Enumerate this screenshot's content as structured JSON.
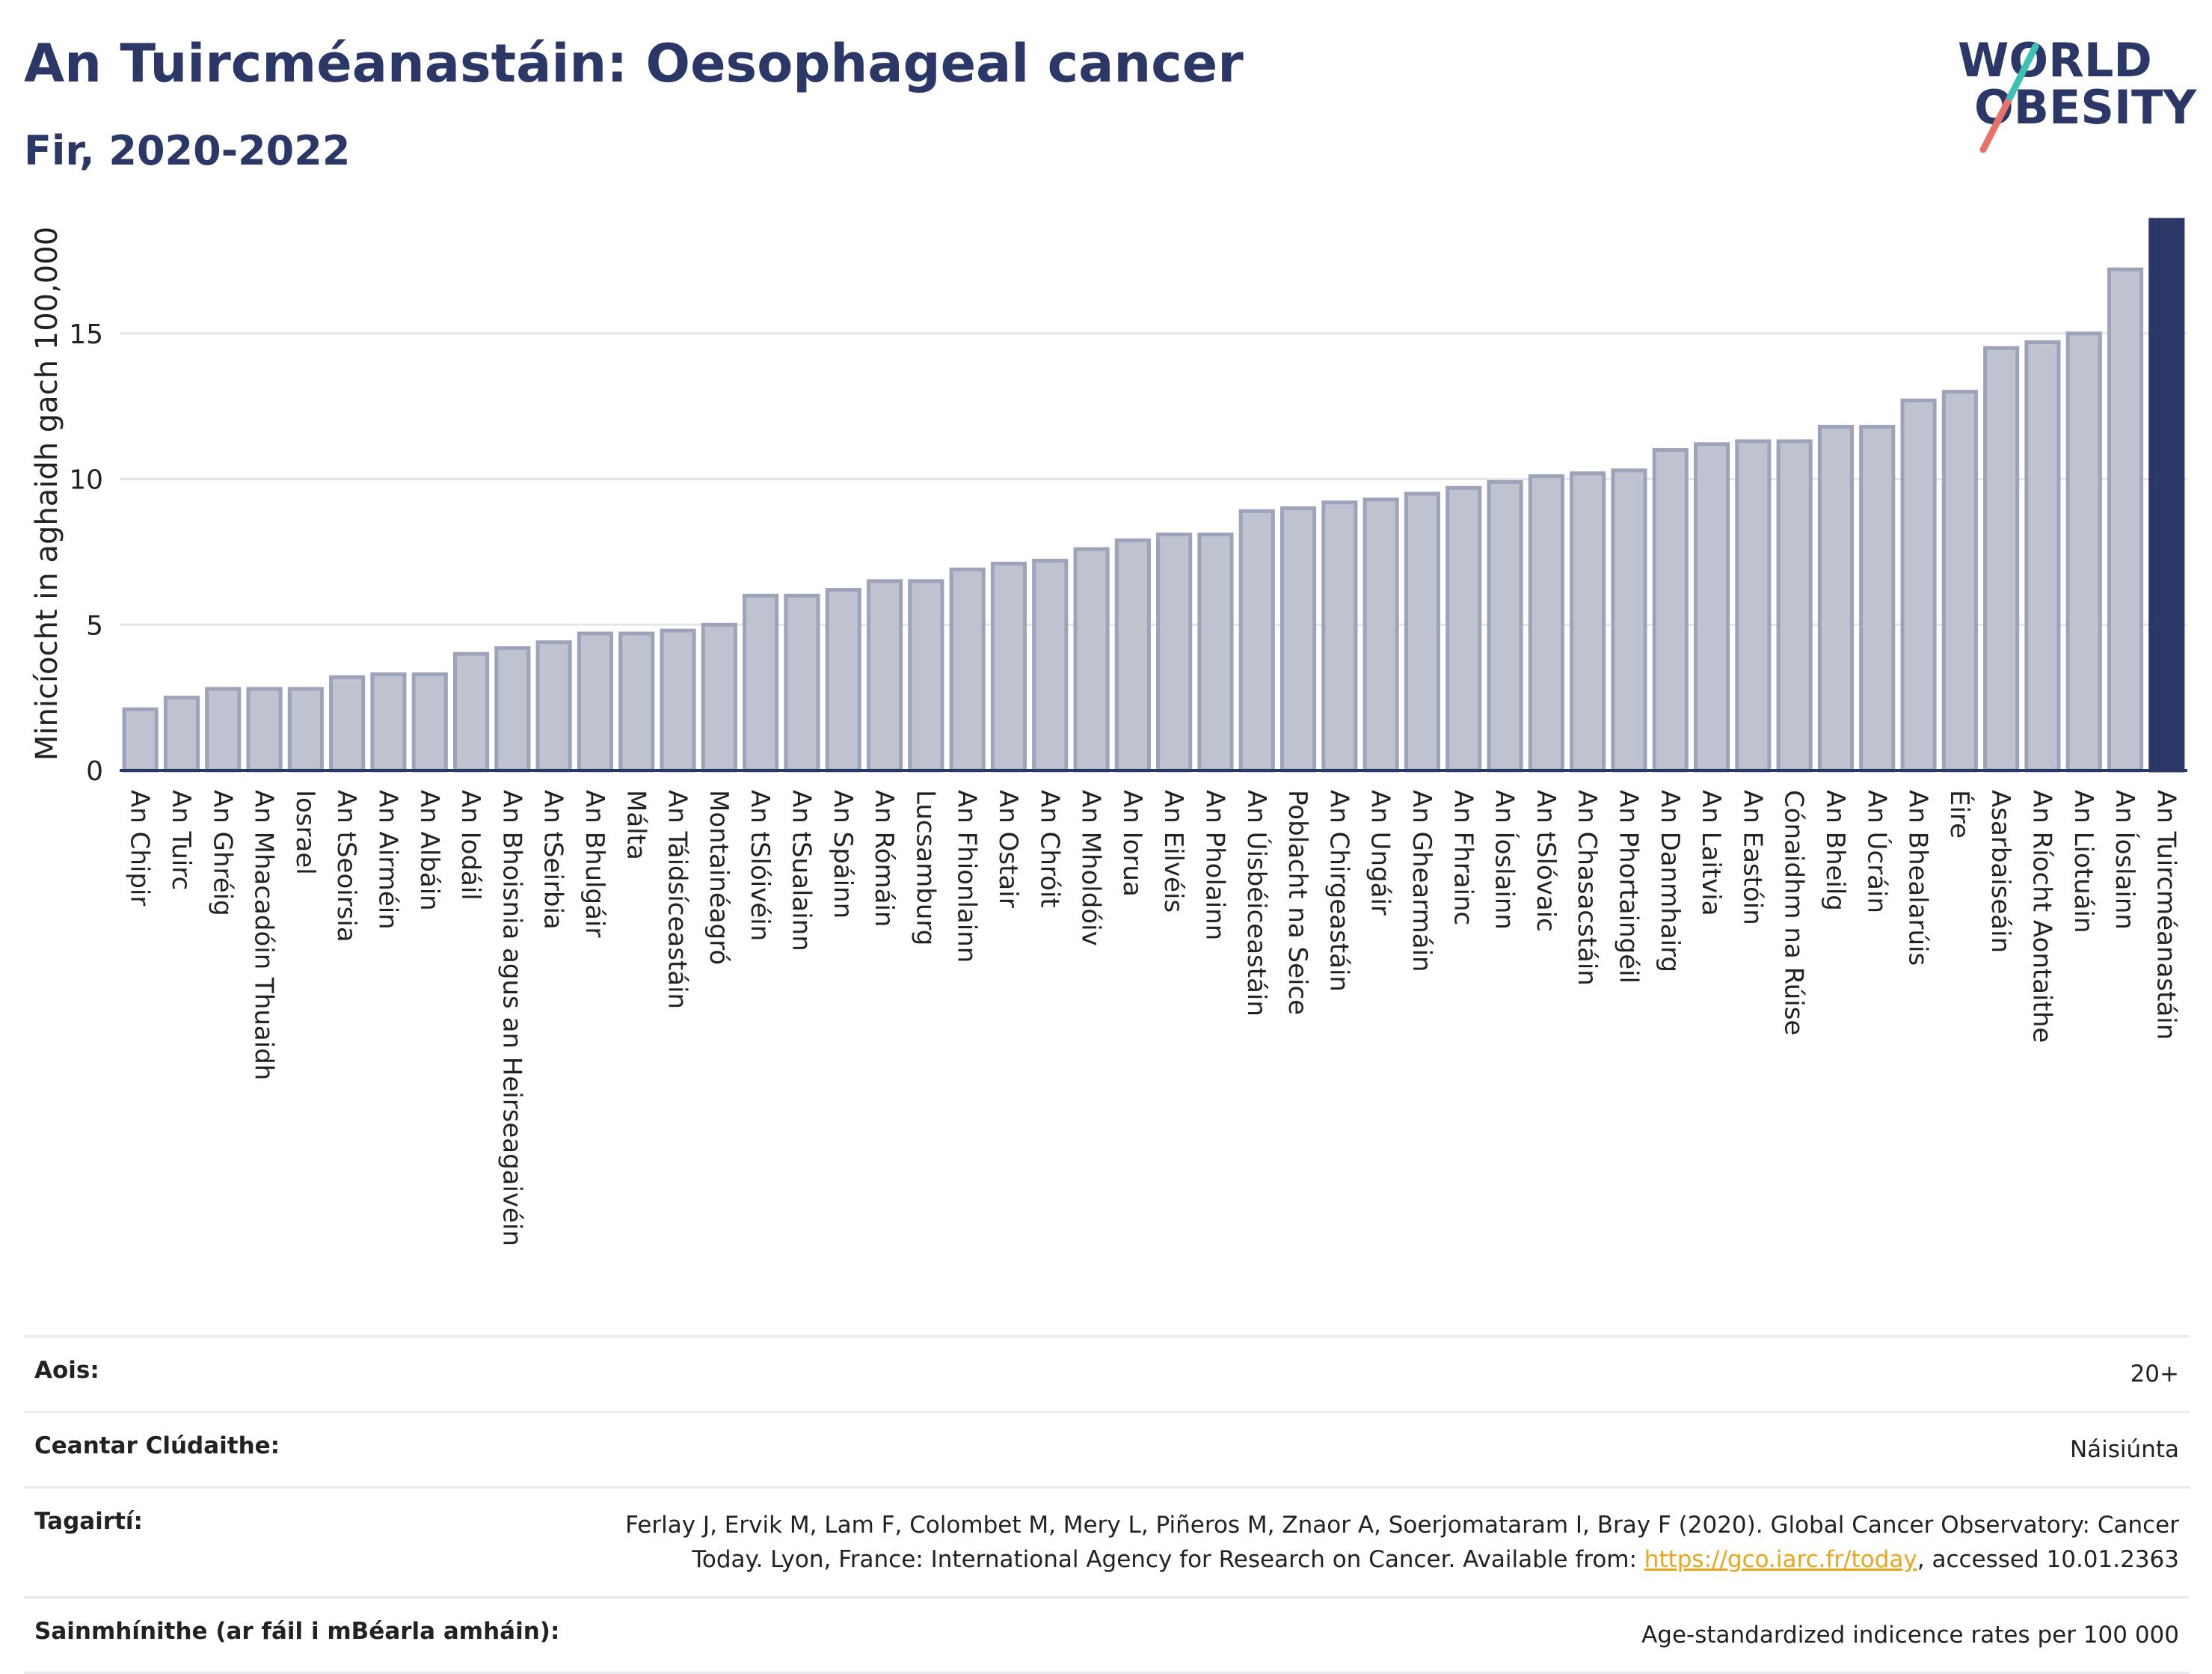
{
  "header": {
    "title": "An Tuircméanastáin: Oesophageal cancer",
    "subtitle": "Fir, 2020-2022"
  },
  "logo": {
    "line1": "WORLD",
    "line2": "OBESITY"
  },
  "chart_data": {
    "type": "bar",
    "ylabel": "Minicíocht in aghaidh gach 100,000",
    "xlabel": "",
    "ylim": [
      0,
      19
    ],
    "yticks": [
      0,
      5,
      10,
      15
    ],
    "grid": true,
    "categories": [
      "An Chipir",
      "An Tuirc",
      "An Ghréig",
      "An Mhacadóin Thuaidh",
      "Iosrael",
      "An tSeoirsia",
      "An Airméin",
      "An Albáin",
      "An Iodáil",
      "An Bhoisnia agus an Heirseagaivéin",
      "An tSeirbia",
      "An Bhulgáir",
      "Málta",
      "An Táidsíceastáin",
      "Montainéagró",
      "An tSlóivéin",
      "An tSualainn",
      "An Spáinn",
      "An Rómáin",
      "Lucsamburg",
      "An Fhionlainn",
      "An Ostair",
      "An Chróit",
      "An Mholdóiv",
      "An Iorua",
      "An Eilvéis",
      "An Pholainn",
      "An Úisbéiceastáin",
      "Poblacht na Seice",
      "An Chirgeastáin",
      "An Ungáir",
      "An Ghearmáin",
      "An Fhrainc",
      "An Íoslainn",
      "An tSlóvaic",
      "An Chasacstáin",
      "An Phortaingéil",
      "An Danmhairg",
      "An Laitvia",
      "An Eastóin",
      "Cónaidhm na Rúise",
      "An Bheilg",
      "An Úcráin",
      "An Bhealarúis",
      "Éire",
      "Asarbaiseáin",
      "An Ríocht Aontaithe",
      "An Liotuáin",
      "An Íoslainn",
      "An Tuircméanastáin"
    ],
    "values": [
      2.1,
      2.5,
      2.8,
      2.8,
      2.8,
      3.2,
      3.3,
      3.3,
      4.0,
      4.2,
      4.4,
      4.7,
      4.7,
      4.8,
      5.0,
      6.0,
      6.0,
      6.2,
      6.5,
      6.5,
      6.9,
      7.1,
      7.2,
      7.6,
      7.9,
      8.1,
      8.1,
      8.9,
      9.0,
      9.2,
      9.3,
      9.5,
      9.7,
      9.9,
      10.1,
      10.2,
      10.3,
      11.0,
      11.2,
      11.3,
      11.3,
      11.8,
      11.8,
      12.7,
      13.0,
      14.5,
      14.7,
      15.0,
      17.2,
      18.9
    ],
    "highlight_index": 49,
    "colors": {
      "bar": "#bfc3d0",
      "bar_border": "#9da3b9",
      "highlight": "#2b3766",
      "grid": "#e4e6ec",
      "axis": "#2b3766"
    }
  },
  "meta": {
    "age_label": "Aois:",
    "age_value": "20+",
    "coverage_label": "Ceantar Clúdaithe:",
    "coverage_value": "Náisiúnta",
    "ref_label": "Tagairtí:",
    "ref_text_1": "Ferlay J, Ervik M, Lam F, Colombet M, Mery L, Piñeros M, Znaor A, Soerjomataram I, Bray F (2020). Global Cancer Observatory: Cancer Today. Lyon, France: International Agency for Research on Cancer. Available from: ",
    "ref_link": "https://gco.iarc.fr/today",
    "ref_text_2": ", accessed 10.01.2363",
    "def_label": "Sainmhínithe (ar fáil i mBéarla amháin):",
    "def_value": "Age-standardized indicence rates per 100 000"
  }
}
